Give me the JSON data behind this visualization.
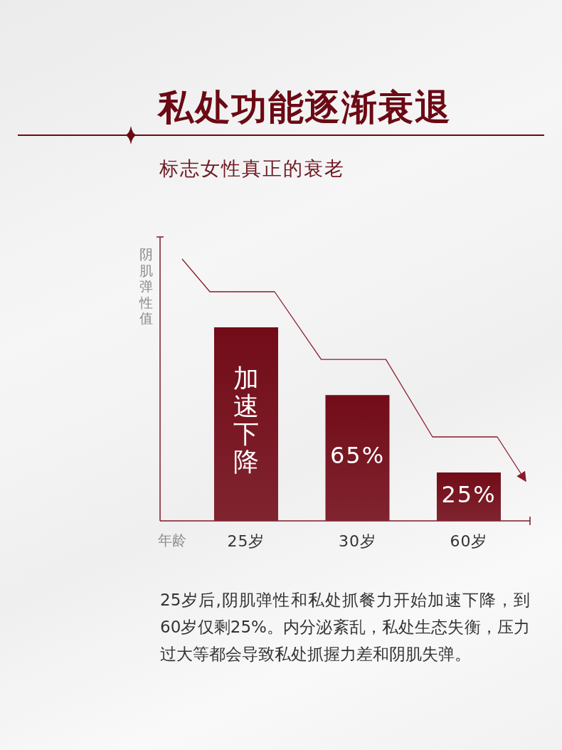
{
  "chart_data": {
    "type": "bar",
    "title": "私处功能逐渐衰退",
    "subtitle": "标志女性真正的衰老",
    "ylabel": "阴肌弹性值",
    "xlabel": "年龄",
    "categories": [
      "25岁",
      "30岁",
      "60岁"
    ],
    "values": [
      100,
      65,
      25
    ],
    "color": "#720c18",
    "value_labels": [
      "加速下降",
      "65%",
      "25%"
    ],
    "annotations": [
      "25岁后,阴肌弹性和私处抓餐力开始加速下降，到60岁仅剩25%。内分泌紊乱，私处生态失衡，压力过大等都会导致私处抓握力差和阴肌失弹。"
    ]
  }
}
